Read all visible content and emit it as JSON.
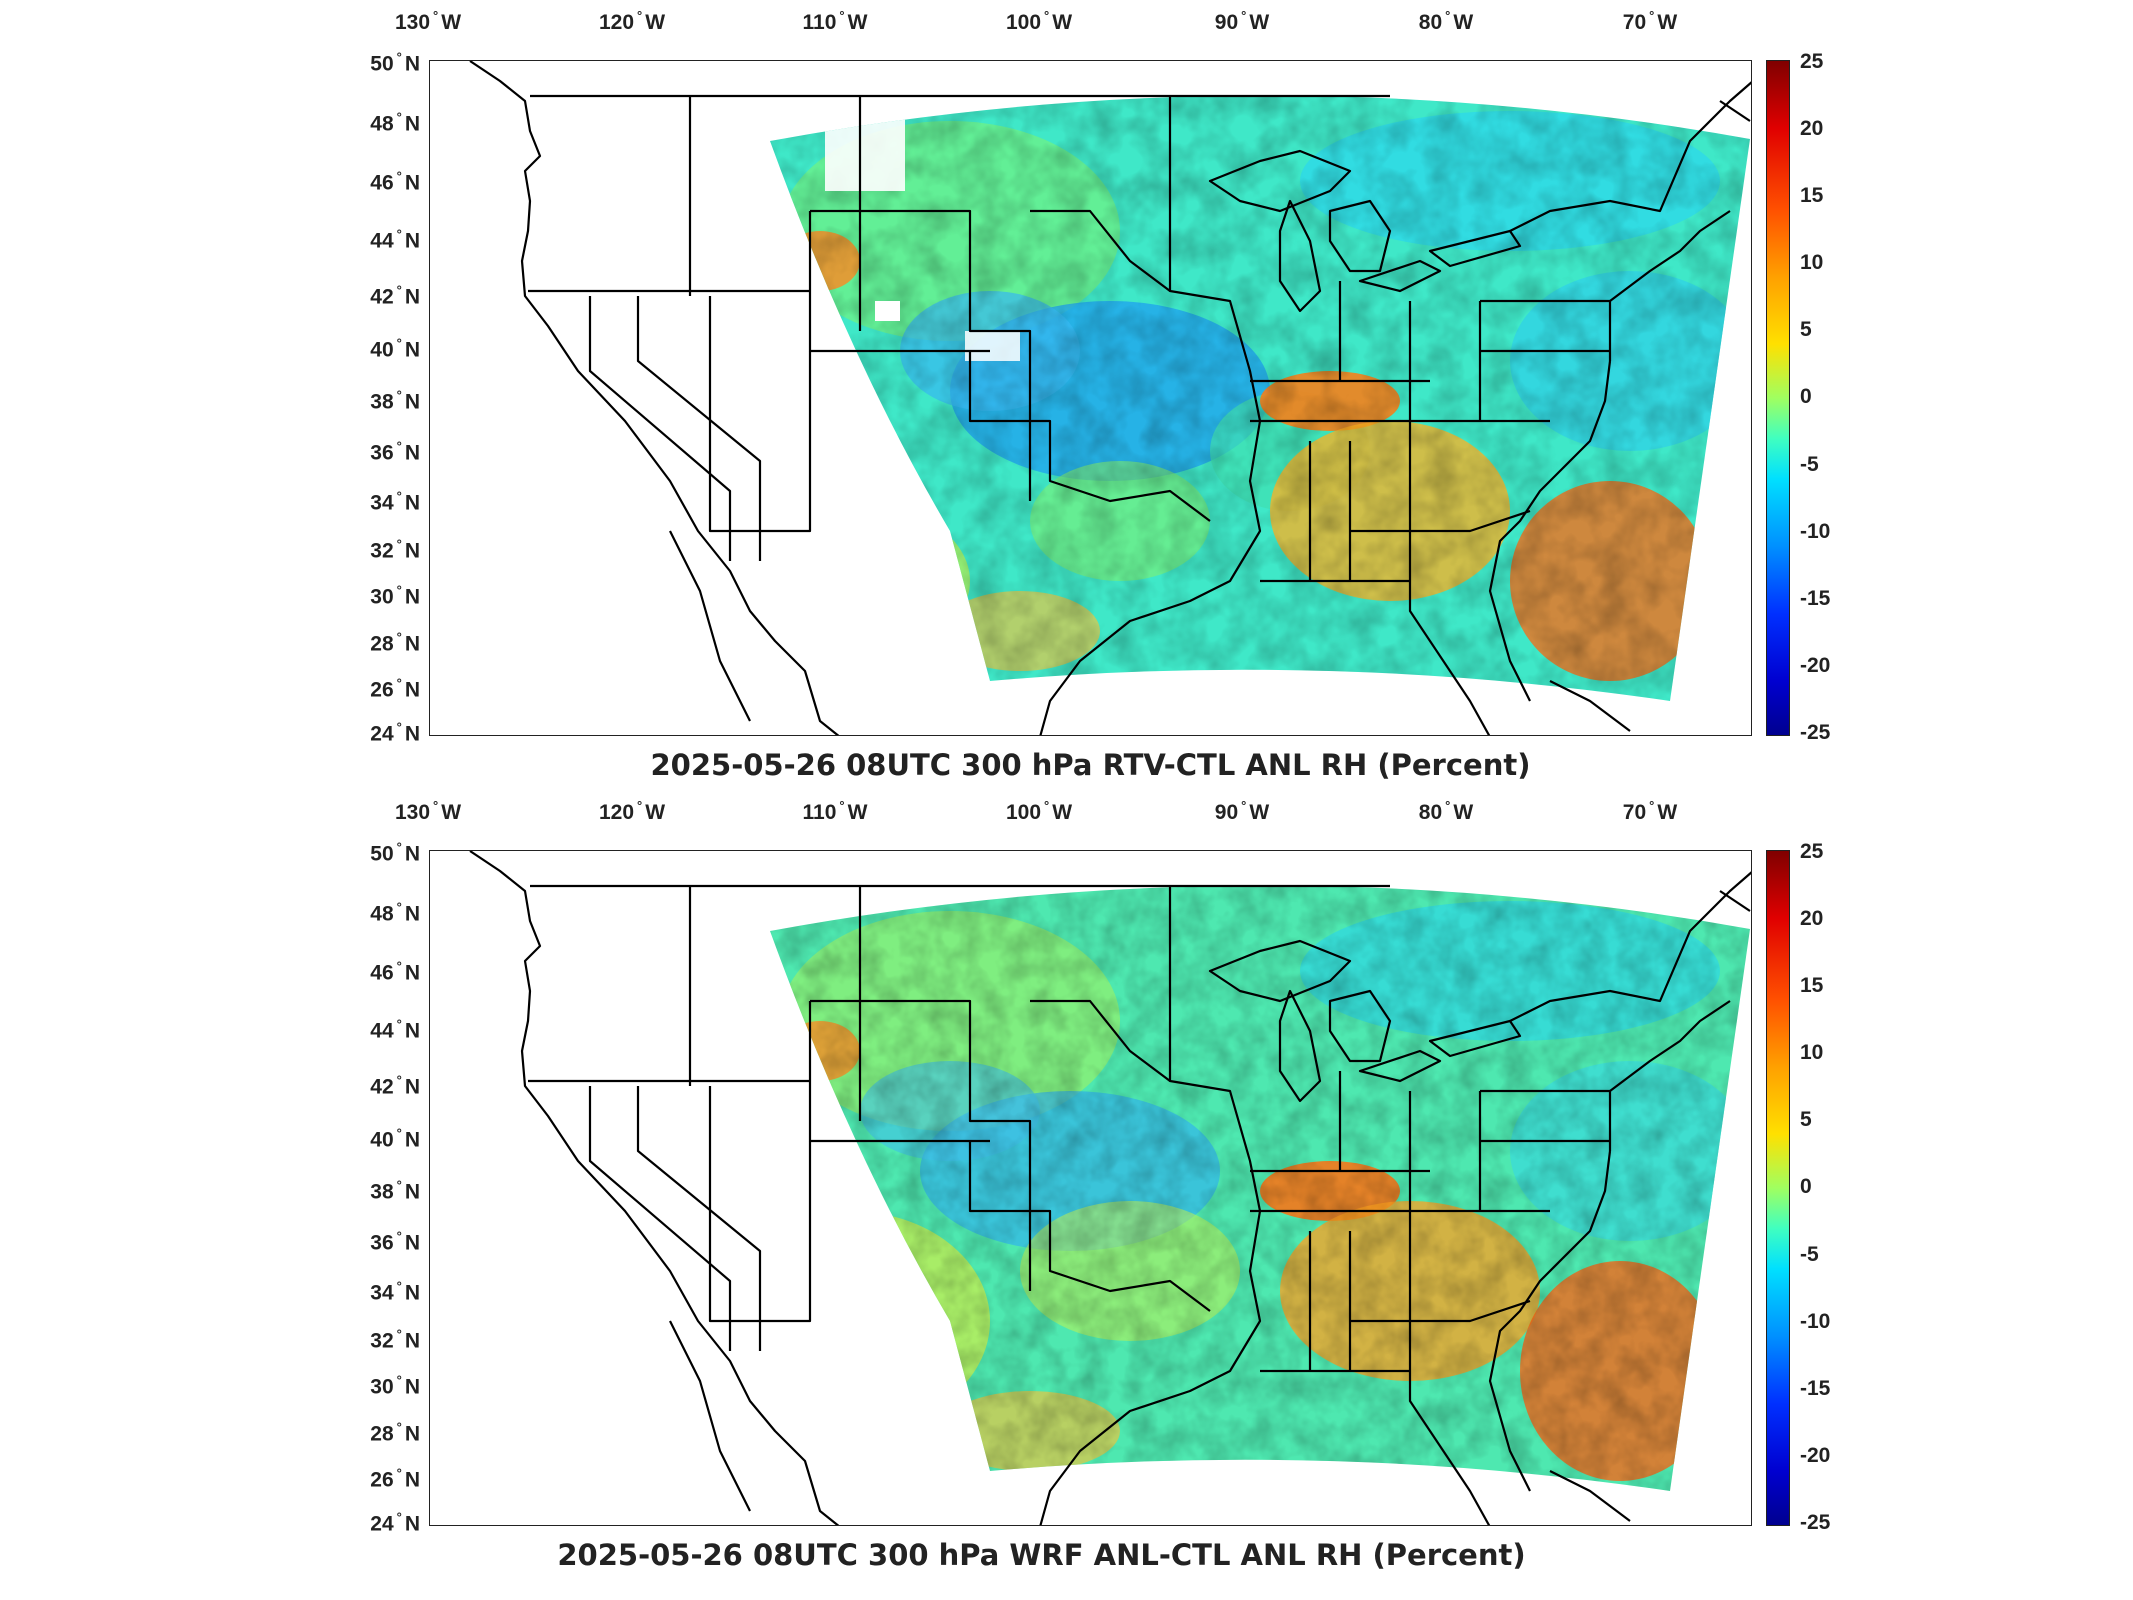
{
  "panels": [
    {
      "title": "2025-05-26 08UTC 300 hPa RTV-CTL ANL RH (Percent)",
      "lon_labels": [
        "130",
        "120",
        "110",
        "100",
        "90",
        "80",
        "70"
      ],
      "lon_suffix": "W",
      "lat_labels": [
        "50",
        "48",
        "46",
        "44",
        "42",
        "40",
        "38",
        "36",
        "34",
        "32",
        "30",
        "28",
        "26",
        "24"
      ],
      "lat_suffix": "N",
      "colorbar_ticks": [
        "25",
        "20",
        "15",
        "10",
        "5",
        "0",
        "-5",
        "-10",
        "-15",
        "-20",
        "-25"
      ]
    },
    {
      "title": "2025-05-26 08UTC 300 hPa WRF ANL-CTL ANL RH (Percent)",
      "lon_labels": [
        "130",
        "120",
        "110",
        "100",
        "90",
        "80",
        "70"
      ],
      "lon_suffix": "W",
      "lat_labels": [
        "50",
        "48",
        "46",
        "44",
        "42",
        "40",
        "38",
        "36",
        "34",
        "32",
        "30",
        "28",
        "26",
        "24"
      ],
      "lat_suffix": "N",
      "colorbar_ticks": [
        "25",
        "20",
        "15",
        "10",
        "5",
        "0",
        "-5",
        "-10",
        "-15",
        "-20",
        "-25"
      ]
    }
  ],
  "colorbar": {
    "min": -25,
    "max": 25,
    "colormap": "jet",
    "units": "Percent"
  },
  "map": {
    "lon_range": [
      -132,
      -64.5
    ],
    "lat_range": [
      24,
      50
    ],
    "projection": "lat-lon"
  }
}
